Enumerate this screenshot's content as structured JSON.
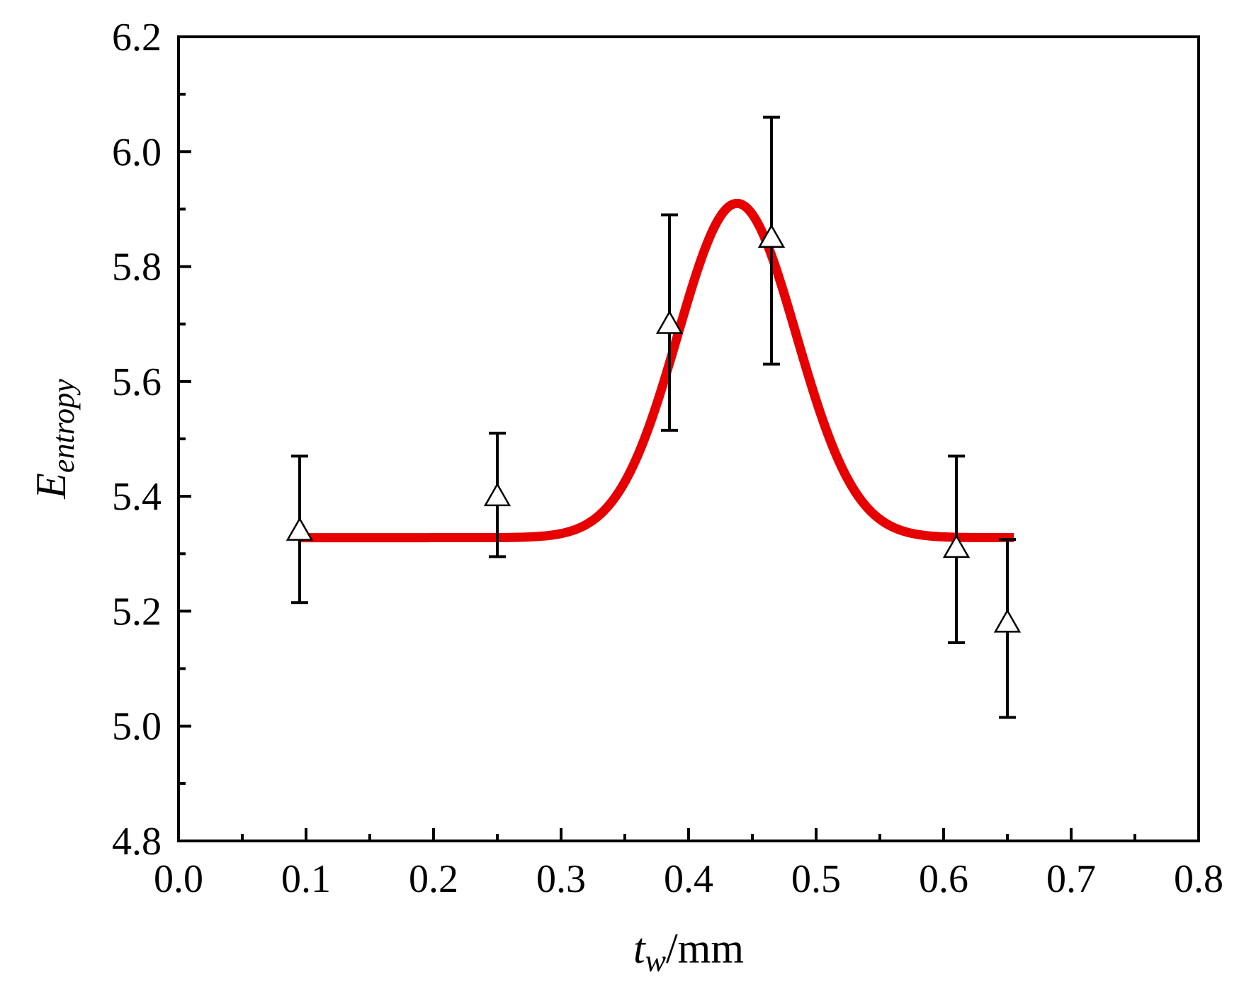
{
  "chart_data": {
    "type": "scatter",
    "title": "",
    "xlabel": {
      "main": "t",
      "sub": "w",
      "suffix": "/mm"
    },
    "ylabel": {
      "main": "E",
      "sub": "entropy"
    },
    "xlim": [
      0.0,
      0.8
    ],
    "ylim": [
      4.8,
      6.2
    ],
    "x_ticks": [
      0.0,
      0.1,
      0.2,
      0.3,
      0.4,
      0.5,
      0.6,
      0.7,
      0.8
    ],
    "x_tick_labels": [
      "0.0",
      "0.1",
      "0.2",
      "0.3",
      "0.4",
      "0.5",
      "0.6",
      "0.7",
      "0.8"
    ],
    "x_minor_step": 0.05,
    "y_ticks": [
      4.8,
      5.0,
      5.2,
      5.4,
      5.6,
      5.8,
      6.0,
      6.2
    ],
    "y_tick_labels": [
      "4.8",
      "5.0",
      "5.2",
      "5.4",
      "5.6",
      "5.8",
      "6.0",
      "6.2"
    ],
    "y_minor_step": 0.1,
    "grid": false,
    "legend": "none",
    "series": [
      {
        "kind": "points-with-error-bars",
        "marker": "open-triangle",
        "color": "#000000",
        "points": [
          {
            "x": 0.095,
            "y": 5.34,
            "y_low": 5.215,
            "y_high": 5.47
          },
          {
            "x": 0.25,
            "y": 5.4,
            "y_low": 5.295,
            "y_high": 5.51
          },
          {
            "x": 0.385,
            "y": 5.7,
            "y_low": 5.515,
            "y_high": 5.89
          },
          {
            "x": 0.465,
            "y": 5.85,
            "y_low": 5.63,
            "y_high": 6.06
          },
          {
            "x": 0.61,
            "y": 5.31,
            "y_low": 5.145,
            "y_high": 5.47
          },
          {
            "x": 0.65,
            "y": 5.18,
            "y_low": 5.015,
            "y_high": 5.325
          }
        ]
      },
      {
        "kind": "fit-curve",
        "color": "#e60000",
        "model": "gaussian",
        "baseline": 5.328,
        "amplitude": 0.582,
        "center": 0.438,
        "sigma": 0.0465,
        "x_range": [
          0.095,
          0.655
        ]
      }
    ]
  }
}
